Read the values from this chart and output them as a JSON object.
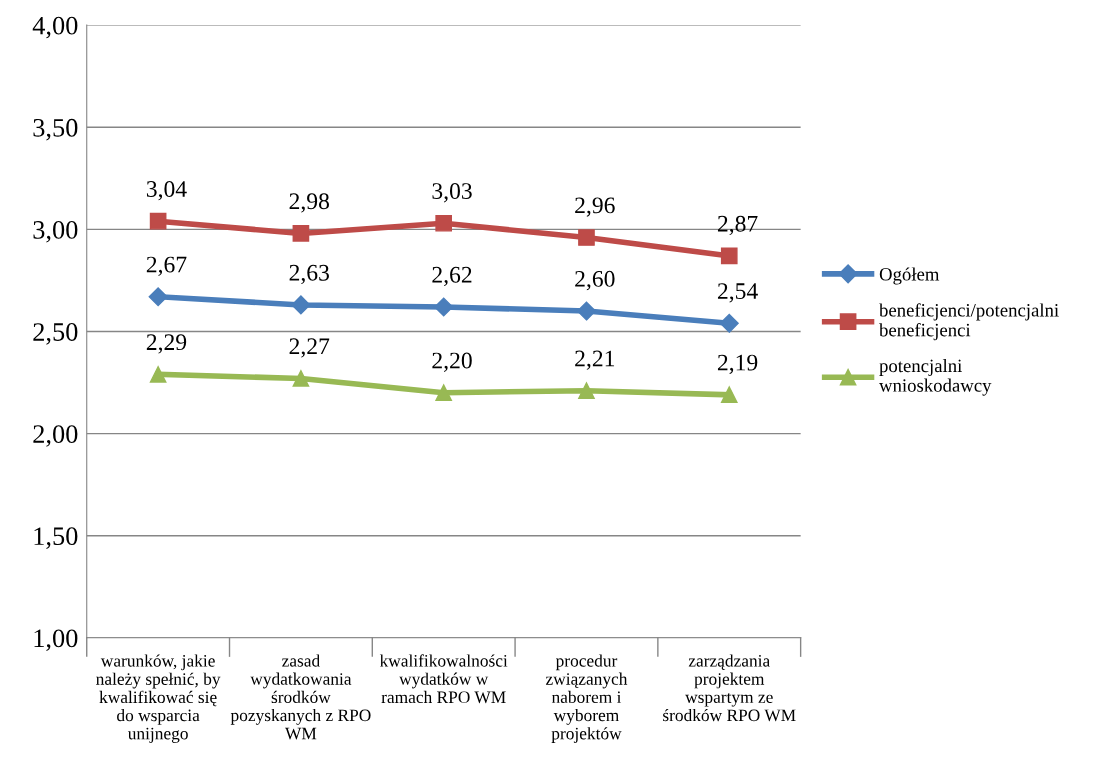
{
  "chart_data": {
    "type": "line",
    "categories": [
      "warunków, jakie\nnależy spełnić, by\nkwalifikować się\ndo wsparcia\nunijnego",
      "zasad\nwydatkowania\nśrodków\npozyskanych z RPO\nWM",
      "kwalifikowalności\nwydatków w\nramach RPO WM",
      "procedur\nzwiązanych\nnaborem i\nwyborem\nprojektów",
      "zarządzania\nprojektem\nwspartym ze\nśrodków RPO WM"
    ],
    "series": [
      {
        "name": "Ogółem",
        "color": "#4a7ebb",
        "marker": "diamond",
        "values": [
          2.67,
          2.63,
          2.62,
          2.6,
          2.54
        ],
        "value_labels": [
          "2,67",
          "2,63",
          "2,62",
          "2,60",
          "2,54"
        ]
      },
      {
        "name": "beneficjenci/potencjalni\nbeneficjenci",
        "color": "#be4b48",
        "marker": "square",
        "values": [
          3.04,
          2.98,
          3.03,
          2.96,
          2.87
        ],
        "value_labels": [
          "3,04",
          "2,98",
          "3,03",
          "2,96",
          "2,87"
        ]
      },
      {
        "name": "potencjalni\nwnioskodawcy",
        "color": "#98b954",
        "marker": "triangle",
        "values": [
          2.29,
          2.27,
          2.2,
          2.21,
          2.19
        ],
        "value_labels": [
          "2,29",
          "2,27",
          "2,20",
          "2,21",
          "2,19"
        ]
      }
    ],
    "ylim": [
      1.0,
      4.0
    ],
    "yticks": [
      {
        "value": 1.0,
        "label": "1,00"
      },
      {
        "value": 1.5,
        "label": "1,50"
      },
      {
        "value": 2.0,
        "label": "2,00"
      },
      {
        "value": 2.5,
        "label": "2,50"
      },
      {
        "value": 3.0,
        "label": "3,00"
      },
      {
        "value": 3.5,
        "label": "3,50"
      },
      {
        "value": 4.0,
        "label": "4,00"
      }
    ],
    "grid": "y",
    "legend": "right",
    "line_style": "solid"
  }
}
